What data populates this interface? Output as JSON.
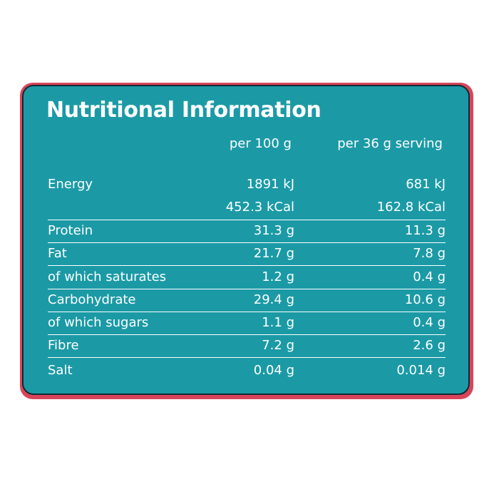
{
  "title": "Nutritional Information",
  "columns": {
    "per_100g": "per 100 g",
    "per_serving": "per 36 g serving"
  },
  "rows": [
    {
      "label": "Energy",
      "per_100g": "1891 kJ",
      "per_serving": "681 kJ"
    },
    {
      "label": "",
      "per_100g": "452.3 kCal",
      "per_serving": "162.8 kCal"
    },
    {
      "label": "Protein",
      "per_100g": "31.3 g",
      "per_serving": "11.3 g"
    },
    {
      "label": "Fat",
      "per_100g": "21.7 g",
      "per_serving": "7.8 g"
    },
    {
      "label": "of which saturates",
      "per_100g": "1.2 g",
      "per_serving": "0.4 g"
    },
    {
      "label": "Carbohydrate",
      "per_100g": "29.4 g",
      "per_serving": "10.6 g"
    },
    {
      "label": "of which sugars",
      "per_100g": "1.1 g",
      "per_serving": "0.4 g"
    },
    {
      "label": "Fibre",
      "per_100g": "7.2 g",
      "per_serving": "2.6 g"
    },
    {
      "label": "Salt",
      "per_100g": "0.04 g",
      "per_serving": "0.014 g"
    }
  ],
  "colors": {
    "panel": "#1b9aa6",
    "backing": "#d8455a",
    "text": "#ffffff"
  }
}
